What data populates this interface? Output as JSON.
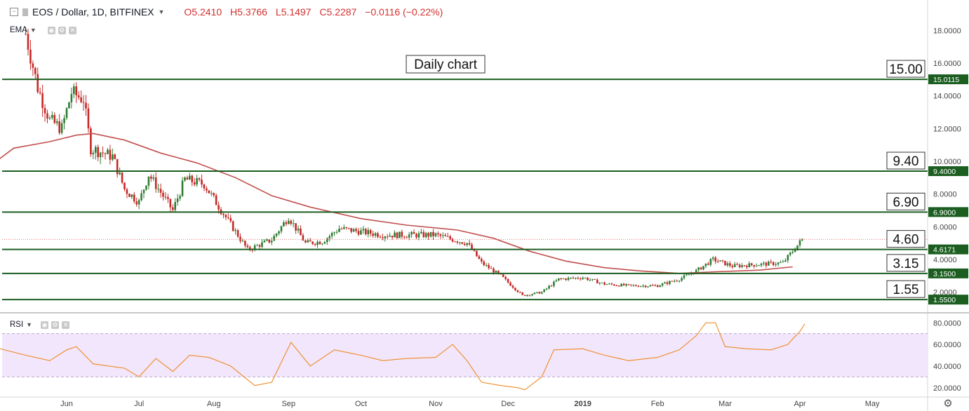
{
  "header": {
    "symbol": "EOS / Dollar, 1D, BITFINEX",
    "open": "O5.2410",
    "high": "H5.3766",
    "low": "L5.1497",
    "close": "C5.2287",
    "change": "−0.0116 (−0.22%)"
  },
  "indicators": {
    "ema_label": "EMA",
    "rsi_label": "RSI"
  },
  "colors": {
    "up": "#2e7d32",
    "down": "#c62828",
    "ema": "#c0504d",
    "rsi": "#f08a24",
    "level_line": "#1b5e20",
    "rsi_band": "#f1e6fb"
  },
  "chart_data": [
    {
      "type": "candlestick",
      "title": "Daily chart",
      "x_ticks": [
        "Jun",
        "Jul",
        "Aug",
        "Sep",
        "Oct",
        "Nov",
        "Dec",
        "2019",
        "Feb",
        "Mar",
        "Apr",
        "May"
      ],
      "y_ticks": [
        "2.0000",
        "4.0000",
        "6.0000",
        "8.0000",
        "10.0000",
        "12.0000",
        "14.0000",
        "16.0000",
        "18.0000"
      ],
      "ylim": [
        1.0,
        19.6
      ],
      "series_points": {
        "close_path": [
          [
            "2018-05-15",
            17.8
          ],
          [
            "2018-05-20",
            14.5
          ],
          [
            "2018-05-25",
            12.5
          ],
          [
            "2018-05-30",
            12.0
          ],
          [
            "2018-06-03",
            14.2
          ],
          [
            "2018-06-08",
            13.8
          ],
          [
            "2018-06-11",
            10.8
          ],
          [
            "2018-06-20",
            10.3
          ],
          [
            "2018-06-25",
            8.3
          ],
          [
            "2018-07-01",
            7.5
          ],
          [
            "2018-07-05",
            9.2
          ],
          [
            "2018-07-15",
            7.0
          ],
          [
            "2018-07-20",
            8.9
          ],
          [
            "2018-07-28",
            8.6
          ],
          [
            "2018-08-05",
            6.8
          ],
          [
            "2018-08-15",
            4.6
          ],
          [
            "2018-08-25",
            5.2
          ],
          [
            "2018-09-01",
            6.6
          ],
          [
            "2018-09-08",
            5.0
          ],
          [
            "2018-09-15",
            5.1
          ],
          [
            "2018-09-22",
            5.9
          ],
          [
            "2018-10-01",
            5.7
          ],
          [
            "2018-10-10",
            5.5
          ],
          [
            "2018-10-20",
            5.5
          ],
          [
            "2018-11-01",
            5.5
          ],
          [
            "2018-11-14",
            5.0
          ],
          [
            "2018-11-20",
            3.8
          ],
          [
            "2018-11-28",
            3.0
          ],
          [
            "2018-12-07",
            1.8
          ],
          [
            "2018-12-15",
            2.0
          ],
          [
            "2018-12-22",
            2.8
          ],
          [
            "2019-01-01",
            2.9
          ],
          [
            "2019-01-10",
            2.5
          ],
          [
            "2019-01-20",
            2.4
          ],
          [
            "2019-02-01",
            2.4
          ],
          [
            "2019-02-10",
            2.8
          ],
          [
            "2019-02-17",
            3.3
          ],
          [
            "2019-02-24",
            4.0
          ],
          [
            "2019-03-04",
            3.6
          ],
          [
            "2019-03-15",
            3.7
          ],
          [
            "2019-03-25",
            3.8
          ],
          [
            "2019-04-02",
            5.23
          ]
        ]
      },
      "ema_series": [
        [
          "2018-05-01",
          9.8
        ],
        [
          "2018-05-10",
          10.8
        ],
        [
          "2018-05-25",
          11.2
        ],
        [
          "2018-06-05",
          11.6
        ],
        [
          "2018-06-12",
          11.7
        ],
        [
          "2018-06-25",
          11.3
        ],
        [
          "2018-07-10",
          10.5
        ],
        [
          "2018-07-25",
          9.9
        ],
        [
          "2018-08-10",
          9.0
        ],
        [
          "2018-08-25",
          7.9
        ],
        [
          "2018-09-10",
          7.2
        ],
        [
          "2018-10-01",
          6.5
        ],
        [
          "2018-10-20",
          6.1
        ],
        [
          "2018-11-10",
          5.8
        ],
        [
          "2018-11-25",
          5.3
        ],
        [
          "2018-12-10",
          4.5
        ],
        [
          "2018-12-25",
          3.9
        ],
        [
          "2019-01-10",
          3.5
        ],
        [
          "2019-01-25",
          3.3
        ],
        [
          "2019-02-10",
          3.15
        ],
        [
          "2019-02-25",
          3.25
        ],
        [
          "2019-03-15",
          3.35
        ],
        [
          "2019-03-29",
          3.55
        ]
      ],
      "levels": [
        {
          "label": "15.00",
          "axis_label": "15.0115",
          "value": 15.0115
        },
        {
          "label": "9.40",
          "axis_label": "9.4000",
          "value": 9.4
        },
        {
          "label": "6.90",
          "axis_label": "6.9000",
          "value": 6.9
        },
        {
          "label": "4.60",
          "axis_label": "4.6171",
          "value": 4.6171
        },
        {
          "label": "3.15",
          "axis_label": "3.1500",
          "value": 3.15
        },
        {
          "label": "1.55",
          "axis_label": "1.5500",
          "value": 1.55
        }
      ],
      "last_price": 5.2287
    },
    {
      "type": "line",
      "name": "RSI",
      "y_ticks": [
        "20.0000",
        "40.0000",
        "60.0000",
        "80.0000"
      ],
      "ylim": [
        14,
        86
      ],
      "band": [
        30,
        70
      ],
      "points": [
        [
          "2018-05-01",
          58
        ],
        [
          "2018-05-15",
          50
        ],
        [
          "2018-05-25",
          45
        ],
        [
          "2018-06-01",
          55
        ],
        [
          "2018-06-05",
          58
        ],
        [
          "2018-06-12",
          42
        ],
        [
          "2018-06-25",
          38
        ],
        [
          "2018-07-01",
          30
        ],
        [
          "2018-07-08",
          47
        ],
        [
          "2018-07-15",
          35
        ],
        [
          "2018-07-22",
          50
        ],
        [
          "2018-07-30",
          48
        ],
        [
          "2018-08-08",
          40
        ],
        [
          "2018-08-18",
          22
        ],
        [
          "2018-08-25",
          25
        ],
        [
          "2018-09-02",
          62
        ],
        [
          "2018-09-10",
          40
        ],
        [
          "2018-09-20",
          55
        ],
        [
          "2018-10-01",
          50
        ],
        [
          "2018-10-10",
          45
        ],
        [
          "2018-10-20",
          47
        ],
        [
          "2018-11-01",
          48
        ],
        [
          "2018-11-08",
          60
        ],
        [
          "2018-11-14",
          45
        ],
        [
          "2018-11-20",
          25
        ],
        [
          "2018-11-28",
          22
        ],
        [
          "2018-12-05",
          20
        ],
        [
          "2018-12-08",
          18
        ],
        [
          "2018-12-15",
          30
        ],
        [
          "2018-12-20",
          55
        ],
        [
          "2019-01-01",
          56
        ],
        [
          "2019-01-10",
          50
        ],
        [
          "2019-01-20",
          45
        ],
        [
          "2019-02-01",
          48
        ],
        [
          "2019-02-10",
          55
        ],
        [
          "2019-02-17",
          68
        ],
        [
          "2019-02-21",
          80
        ],
        [
          "2019-02-25",
          80
        ],
        [
          "2019-03-01",
          58
        ],
        [
          "2019-03-10",
          56
        ],
        [
          "2019-03-20",
          55
        ],
        [
          "2019-03-27",
          60
        ],
        [
          "2019-03-29",
          65
        ],
        [
          "2019-04-01",
          72
        ],
        [
          "2019-04-03",
          79
        ]
      ]
    }
  ]
}
